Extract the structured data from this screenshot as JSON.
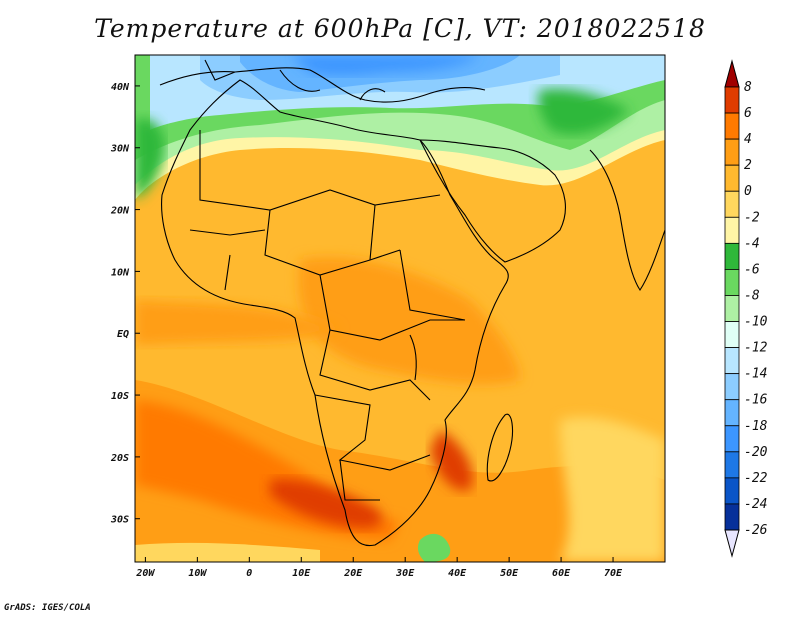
{
  "title": "Temperature at 600hPa [C], VT: 2018022518",
  "credit": "GrADS: IGES/COLA",
  "map": {
    "lon_range": [
      -22,
      80
    ],
    "lat_range": [
      -37,
      45
    ],
    "lon_ticks": [
      "20W",
      "10W",
      "0",
      "10E",
      "20E",
      "30E",
      "40E",
      "50E",
      "60E",
      "70E"
    ],
    "lat_ticks": [
      "40N",
      "30N",
      "20N",
      "10N",
      "EQ",
      "10S",
      "20S",
      "30S"
    ]
  },
  "colorbar": {
    "labels": [
      "8",
      "6",
      "4",
      "2",
      "0",
      "-2",
      "-4",
      "-6",
      "-8",
      "-10",
      "-12",
      "-14",
      "-16",
      "-18",
      "-20",
      "-22",
      "-24",
      "-26"
    ],
    "colors": [
      "#a00000",
      "#e03c00",
      "#ff7a00",
      "#ff9e15",
      "#ffb92f",
      "#ffd75e",
      "#fff5a6",
      "#2fb83a",
      "#6ad860",
      "#aef0a4",
      "#e0fff6",
      "#b8e6ff",
      "#8ccdff",
      "#64b4ff",
      "#3c96ff",
      "#1e78e6",
      "#0a55c8",
      "#06309a",
      "#000a5a"
    ]
  }
}
